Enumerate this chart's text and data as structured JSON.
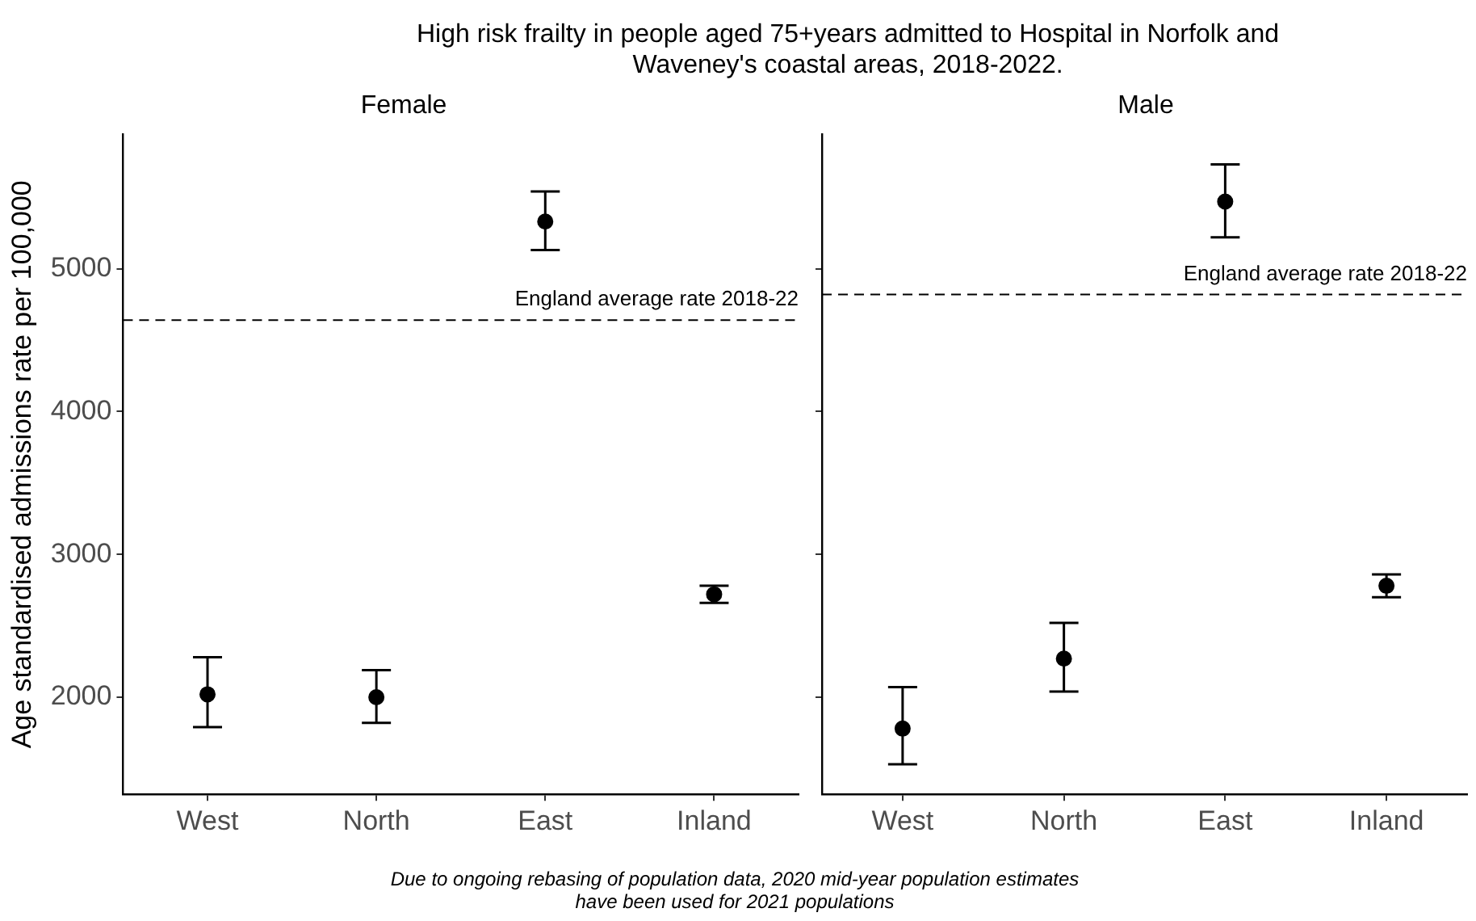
{
  "chart_data": [
    {
      "type": "scatter",
      "title": "High risk frailty in people aged 75+years admitted to Hospital in Norfolk and Waveney's coastal areas, 2018-2022.",
      "subtitle": "Female",
      "ylabel": "Age standardised admissions rate per 100,000",
      "categories": [
        "West",
        "North",
        "East",
        "Inland"
      ],
      "series": [
        {
          "color": "#000000",
          "values": [
            2020,
            2000,
            5330,
            2720
          ],
          "errors": [
            [
              1790,
              2280
            ],
            [
              1820,
              2190
            ],
            [
              5130,
              5540
            ],
            [
              2660,
              2780
            ]
          ]
        }
      ],
      "marker": "circle",
      "ylim": [
        1320,
        5940
      ],
      "yticks": [
        2000,
        3000,
        4000,
        5000
      ],
      "ref_lines": [
        {
          "axis": "y",
          "value": 4640,
          "label": "England average rate 2018-22",
          "line_style": "dashed"
        }
      ],
      "annotations": [
        "Due to ongoing rebasing of population data, 2020 mid-year population estimates have been used for 2021 populations"
      ]
    },
    {
      "type": "scatter",
      "subtitle": "Male",
      "categories": [
        "West",
        "North",
        "East",
        "Inland"
      ],
      "series": [
        {
          "color": "#000000",
          "values": [
            1780,
            2270,
            5470,
            2780
          ],
          "errors": [
            [
              1530,
              2070
            ],
            [
              2040,
              2520
            ],
            [
              5220,
              5730
            ],
            [
              2700,
              2860
            ]
          ]
        }
      ],
      "marker": "circle",
      "ylim": [
        1320,
        5940
      ],
      "yticks": [
        2000,
        3000,
        4000,
        5000
      ],
      "tick_labels": "x",
      "ref_lines": [
        {
          "axis": "y",
          "value": 4820,
          "label": "England average rate 2018-22",
          "line_style": "dashed"
        }
      ]
    }
  ]
}
